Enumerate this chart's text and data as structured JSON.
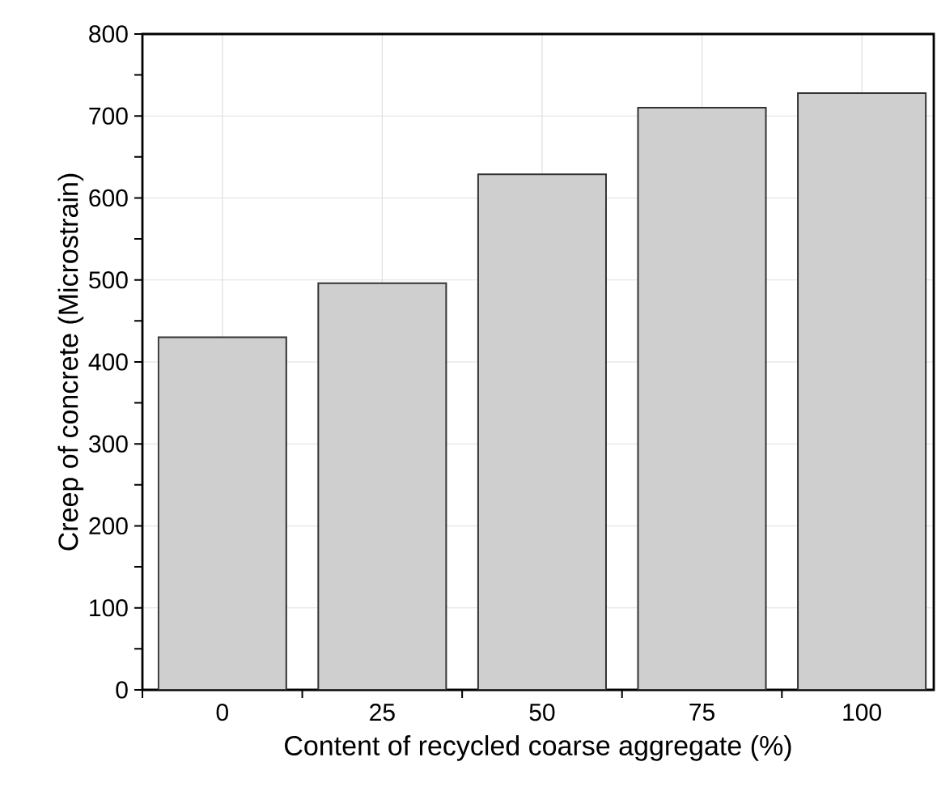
{
  "chart_data": {
    "type": "bar",
    "xlabel": "Content of recycled coarse aggregate (%)",
    "ylabel": "Creep of concrete (Microstrain)",
    "categories": [
      "0",
      "25",
      "50",
      "75",
      "100"
    ],
    "values": [
      430,
      496,
      629,
      710,
      728
    ],
    "color": "#cfcfcf",
    "ylim": [
      0,
      800
    ],
    "yticks": [
      0,
      100,
      200,
      300,
      400,
      500,
      600,
      700,
      800
    ],
    "grid": true
  }
}
